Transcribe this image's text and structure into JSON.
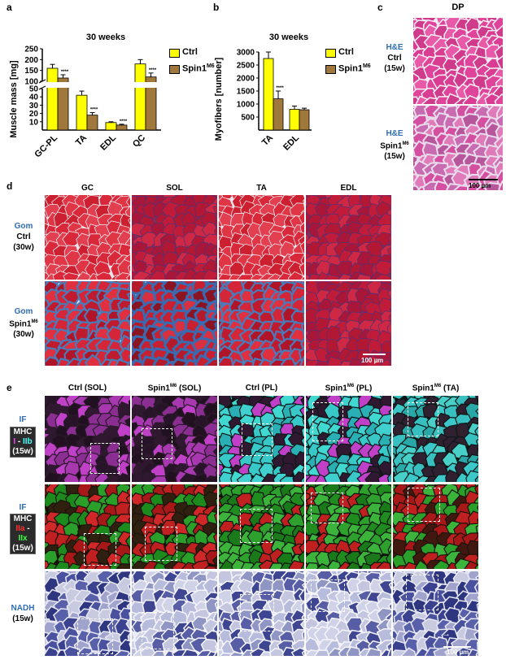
{
  "panels": {
    "a": {
      "letter": "a",
      "title": "30 weeks",
      "ylabel": "Muscle mass [mg]"
    },
    "b": {
      "letter": "b",
      "title": "30 weeks",
      "ylabel": "Myofibers [number]"
    },
    "c": {
      "letter": "c",
      "col_title": "DP",
      "row1_stain": "H&E",
      "row1_group": "Ctrl",
      "row1_age": "(15w)",
      "row2_stain": "H&E",
      "row2_group": "Spin1",
      "row2_sup": "M6",
      "row2_age": "(15w)",
      "scale": "100 µm"
    },
    "d": {
      "letter": "d",
      "cols": [
        "GC",
        "SOL",
        "TA",
        "EDL"
      ],
      "row1_stain": "Gom",
      "row1_group": "Ctrl",
      "row1_age": "(30w)",
      "row2_stain": "Gom",
      "row2_group": "Spin1",
      "row2_sup": "M6",
      "row2_age": "(30w)",
      "scale": "100 µm"
    },
    "e": {
      "letter": "e",
      "cols": [
        {
          "pre": "Ctrl (SOL)",
          "sup": "",
          "post": ""
        },
        {
          "pre": "Spin1",
          "sup": "M6",
          "post": " (SOL)"
        },
        {
          "pre": "Ctrl (PL)",
          "sup": "",
          "post": ""
        },
        {
          "pre": "Spin1",
          "sup": "M6",
          "post": " (PL)"
        },
        {
          "pre": "Spin1",
          "sup": "M6",
          "post": " (TA)"
        }
      ],
      "row1": {
        "stain": "IF",
        "key1": "MHC",
        "key2a": "I",
        "key2sep": " - ",
        "key2b": "IIb",
        "key3": "(15w)"
      },
      "row2": {
        "stain": "IF",
        "key1": "MHC",
        "key2a": "IIa",
        "key2sep": " - ",
        "key2b": "IIx",
        "key3": "(15w)"
      },
      "row3": {
        "stain": "NADH",
        "age": "(15w)"
      },
      "scale": "100 µm"
    }
  },
  "legend": {
    "ctrl": "Ctrl",
    "spin": "Spin1",
    "spin_sup": "M6"
  },
  "colors": {
    "ctrl": "#ffff00",
    "spin": "#a0783c",
    "label_blue": "#2f6db5",
    "sig": "#000000"
  },
  "chart_data": [
    {
      "type": "bar",
      "title": "30 weeks",
      "ylabel": "Muscle mass [mg]",
      "categories": [
        "GC-PL",
        "TA",
        "EDL",
        "QC"
      ],
      "series": [
        {
          "name": "Ctrl",
          "values": [
            160,
            42,
            9,
            180
          ],
          "errors": [
            18,
            5,
            1,
            20
          ]
        },
        {
          "name": "Spin1M6",
          "values": [
            115,
            18,
            6,
            120
          ],
          "errors": [
            15,
            3,
            1,
            18
          ]
        }
      ],
      "significance": [
        "****",
        "****",
        "****",
        "****"
      ],
      "yticks_lower": [
        10,
        20,
        30,
        40,
        50
      ],
      "yticks_upper": [
        100,
        150,
        200,
        250
      ],
      "axis_break": true
    },
    {
      "type": "bar",
      "title": "30 weeks",
      "ylabel": "Myofibers [number]",
      "categories": [
        "TA",
        "EDL"
      ],
      "series": [
        {
          "name": "Ctrl",
          "values": [
            2750,
            800
          ],
          "errors": [
            250,
            120
          ]
        },
        {
          "name": "Spin1M6",
          "values": [
            1200,
            780
          ],
          "errors": [
            300,
            60
          ]
        }
      ],
      "significance": [
        "****",
        ""
      ],
      "ylim": [
        0,
        3000
      ],
      "yticks": [
        500,
        1000,
        1500,
        2000,
        2500,
        3000
      ]
    }
  ]
}
